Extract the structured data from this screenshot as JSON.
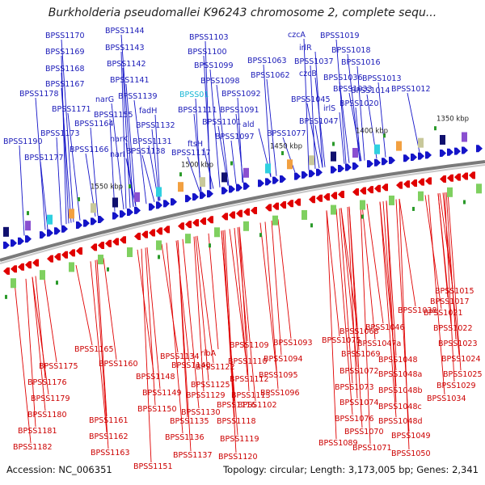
{
  "title": "Burkholderia pseudomallei K96243 chromosome 2, complete sequ...",
  "footer": {
    "accession": "Accession: NC_006351",
    "summary": "Topology: circular; Length: 3,173,005 bp; Genes: 2,341"
  },
  "colors": {
    "upper_strand": "#1414c8",
    "lower_strand": "#e00000",
    "backbone": "#808080",
    "highlight": "#18b6d6"
  },
  "ticks": [
    "1350 kbp",
    "1400 kbp",
    "1450 kbp",
    "1500 kbp",
    "1550 kbp"
  ],
  "upper_labels": [
    "BPSS1190",
    "BPSS1177",
    "BPSS1178",
    "BPSS1170",
    "BPSS1169",
    "BPSS1168",
    "BPSS1167",
    "BPSS1171",
    "BPSS1173",
    "BPSS1164",
    "BPSS1166",
    "narG",
    "BPSS1155",
    "narK",
    "narI",
    "BPSS1144",
    "BPSS1143",
    "BPSS1142",
    "BPSS1141",
    "BPSS1139",
    "fadH",
    "BPSS1132",
    "BPSS1131",
    "BPSS1138",
    "BPSS1103",
    "BPSS1100",
    "BPSS1099",
    "BPSS1098",
    "BPSS01",
    "BPSS1111",
    "ftsH",
    "BPSS1117",
    "BPSS1092",
    "BPSS1091",
    "BPSS1101",
    "ald",
    "BPSS1097",
    "BPSS1063",
    "BPSS1062",
    "BPSS1077",
    "czcA",
    "irlR",
    "czcB",
    "BPSS1045",
    "irlS",
    "BPSS1047",
    "BPSS1019",
    "BPSS1018",
    "BPSS1037",
    "BPSS1016",
    "BPSS1036",
    "BPSS1033",
    "BPSS1020",
    "BPSS1013",
    "BPSS1014",
    "BPSS1012"
  ],
  "lower_labels": [
    "BPSS1165",
    "BPSS1175",
    "BPSS1176",
    "BPSS1179",
    "BPSS1180",
    "BPSS1181",
    "BPSS1182",
    "BPSS1160",
    "BPSS1161",
    "BPSS1162",
    "BPSS1163",
    "BPSS1151",
    "BPSS1148",
    "BPSS1149",
    "BPSS1150",
    "BPSS1134",
    "BPSS1140",
    "BPSS1135",
    "BPSS1136",
    "BPSS1137",
    "ribA",
    "BPSS1122",
    "BPSS1125",
    "BPSS1129",
    "BPSS1130",
    "BPSS1116",
    "BPSS1118",
    "BPSS1119",
    "BPSS1120",
    "BPSS1109",
    "BPSS1110",
    "BPSS1112",
    "BPSS1113",
    "BPSS1102",
    "BPSS1093",
    "BPSS1094",
    "BPSS1095",
    "BPSS1096",
    "BPSS1089",
    "BPSS1068",
    "BPSS1075",
    "BPSS1069",
    "BPSS1072",
    "BPSS1073",
    "BPSS1074",
    "BPSS1076",
    "BPSS1070",
    "BPSS1071",
    "BPSS1046",
    "BPSS1047a",
    "BPSS1048",
    "BPSS1048a",
    "BPSS1048b",
    "BPSS1048c",
    "BPSS1048d",
    "BPSS1049",
    "BPSS1050",
    "BPSS1038",
    "BPSS1015",
    "BPSS1017",
    "BPSS1021",
    "BPSS1022",
    "BPSS1023",
    "BPSS1024",
    "BPSS1025",
    "BPSS1029",
    "BPSS1034"
  ],
  "highlighted_label": "BPSS01"
}
